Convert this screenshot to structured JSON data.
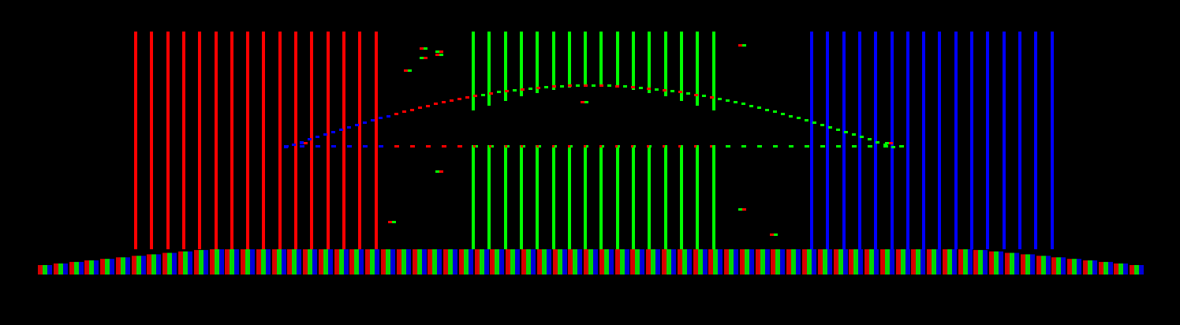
{
  "canvas": {
    "background": "#000000"
  },
  "palette": {
    "red": "#ff0000",
    "green": "#00ff00",
    "blue": "#0000ff"
  },
  "groups": [
    {
      "name": "red-bars",
      "color": "red",
      "count": 16
    },
    {
      "name": "green-bars",
      "color": "green",
      "count": 16
    },
    {
      "name": "blue-bars",
      "color": "blue",
      "count": 16
    }
  ],
  "baseline_cells": 71,
  "dotted_curve": "rise-and-fall"
}
